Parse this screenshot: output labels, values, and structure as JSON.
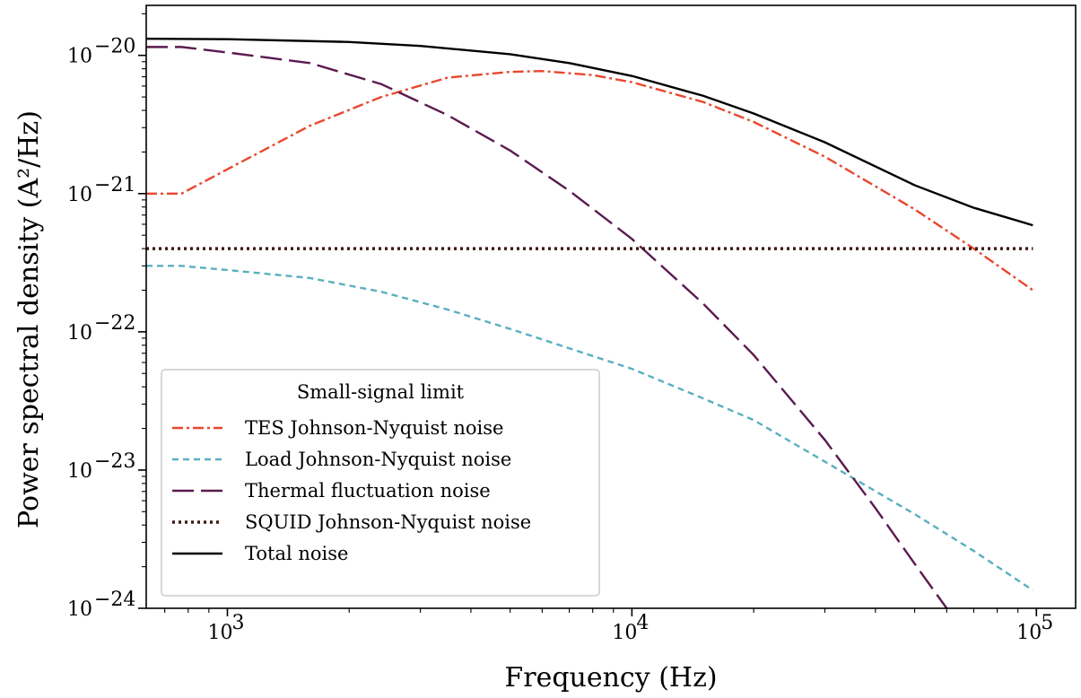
{
  "chart_data": {
    "type": "line",
    "xlabel": "Frequency (Hz)",
    "ylabel": "Power spectral density (A²/Hz)",
    "xscale": "log",
    "yscale": "log",
    "xlim": [
      630,
      125000
    ],
    "ylim": [
      1e-24,
      2.3e-20
    ],
    "x_ticks": [
      {
        "value": 1000,
        "base": "10",
        "exp": "3"
      },
      {
        "value": 10000,
        "base": "10",
        "exp": "4"
      },
      {
        "value": 100000,
        "base": "10",
        "exp": "5"
      }
    ],
    "y_ticks": [
      {
        "value": 1e-20,
        "base": "10",
        "exp": "−20"
      },
      {
        "value": 1e-21,
        "base": "10",
        "exp": "−21"
      },
      {
        "value": 1e-22,
        "base": "10",
        "exp": "−22"
      },
      {
        "value": 1e-23,
        "base": "10",
        "exp": "−23"
      },
      {
        "value": 1e-24,
        "base": "10",
        "exp": "−24"
      }
    ],
    "legend": {
      "title": "Small-signal limit",
      "position": "lower-left"
    },
    "series": [
      {
        "name": "TES Johnson-Nyquist noise",
        "color": "#e8472e",
        "style": "dashdot",
        "x": [
          630,
          770,
          1000,
          1600,
          2400,
          3500,
          5000,
          6000,
          8000,
          10000,
          15000,
          20000,
          30000,
          50000,
          70000,
          98000
        ],
        "y": [
          1e-21,
          1e-21,
          1.5e-21,
          3.1e-21,
          5e-21,
          6.9e-21,
          7.6e-21,
          7.7e-21,
          7.2e-21,
          6.4e-21,
          4.6e-21,
          3.3e-21,
          1.85e-21,
          7.7e-22,
          4e-22,
          2e-22
        ]
      },
      {
        "name": "Load Johnson-Nyquist noise",
        "color": "#5aafc0",
        "style": "dashed",
        "x": [
          630,
          770,
          1000,
          1600,
          2400,
          3500,
          5000,
          7000,
          10000,
          15000,
          20000,
          30000,
          50000,
          70000,
          98000
        ],
        "y": [
          3e-22,
          3e-22,
          2.8e-22,
          2.45e-22,
          1.95e-22,
          1.45e-22,
          1.05e-22,
          7.6e-23,
          5.4e-23,
          3.3e-23,
          2.3e-23,
          1.15e-23,
          4.8e-24,
          2.6e-24,
          1.35e-24
        ]
      },
      {
        "name": "Thermal fluctuation noise",
        "color": "#5b1a4f",
        "style": "longdash",
        "x": [
          630,
          770,
          1000,
          1600,
          2400,
          3500,
          5000,
          7000,
          10000,
          15000,
          20000,
          30000,
          40000,
          50000,
          60000
        ],
        "y": [
          1.15e-20,
          1.15e-20,
          1.05e-20,
          8.8e-21,
          6.2e-21,
          3.7e-21,
          2.05e-21,
          1.05e-21,
          4.7e-22,
          1.6e-22,
          6.8e-23,
          1.65e-23,
          5.3e-24,
          2.1e-24,
          1e-24
        ]
      },
      {
        "name": "SQUID Johnson-Nyquist noise",
        "color": "#3d1a12",
        "style": "dotted",
        "x": [
          630,
          98000
        ],
        "y": [
          4e-22,
          4e-22
        ]
      },
      {
        "name": "Total noise",
        "color": "#000000",
        "style": "solid",
        "x": [
          630,
          1000,
          2000,
          3000,
          5000,
          7000,
          10000,
          15000,
          20000,
          30000,
          50000,
          70000,
          98000
        ],
        "y": [
          1.32e-20,
          1.31e-20,
          1.25e-20,
          1.17e-20,
          1.02e-20,
          8.8e-21,
          7.1e-21,
          5.1e-21,
          3.8e-21,
          2.35e-21,
          1.15e-21,
          7.9e-22,
          5.9e-22
        ]
      }
    ]
  }
}
